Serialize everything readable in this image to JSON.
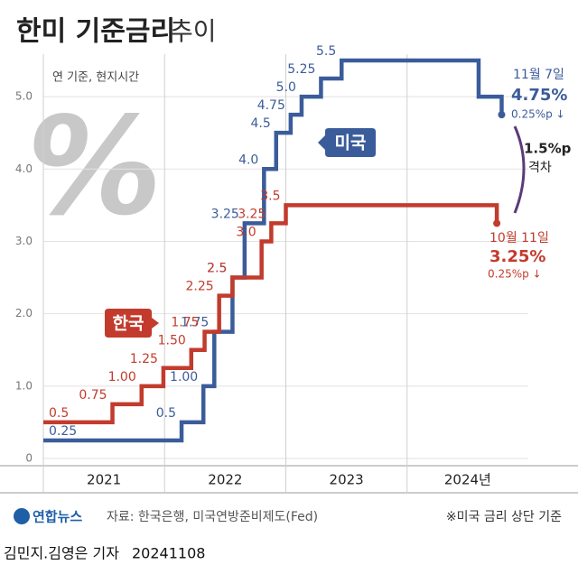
{
  "chart_data": {
    "type": "step",
    "title": "한미 기준금리",
    "title_suffix": "추이",
    "note": "연 기준, 현지시간",
    "decor_text": "%",
    "xlim": [
      2021,
      2025
    ],
    "xticks": [
      {
        "value": 2021,
        "label": "2021"
      },
      {
        "value": 2022,
        "label": "2022"
      },
      {
        "value": 2023,
        "label": "2023"
      },
      {
        "value": 2024,
        "label": "2024년"
      }
    ],
    "ylim": [
      0,
      5.5
    ],
    "yticks": [
      0,
      {
        "value": 1,
        "label": "1.0"
      },
      {
        "value": 2,
        "label": "2.0"
      },
      {
        "value": 3,
        "label": "3.0"
      },
      {
        "value": 4,
        "label": "4.0"
      },
      {
        "value": 5,
        "label": "5.0"
      }
    ],
    "grid": true,
    "series": [
      {
        "name": "미국",
        "color": "#3b5c9a",
        "x": [
          2021,
          2022.14,
          2022.32,
          2022.41,
          2022.56,
          2022.66,
          2022.82,
          2022.92,
          2023.04,
          2023.13,
          2023.29,
          2023.46,
          2024.59,
          2024.78
        ],
        "values": [
          0.25,
          0.5,
          1,
          1.75,
          2.5,
          3.25,
          4,
          4.5,
          4.75,
          5,
          5.25,
          5.5,
          5,
          4.75
        ],
        "value_labels": [
          "0.25",
          "0.5",
          "1.00",
          "1.75",
          "2.5",
          "3.25",
          "4.0",
          "4.5",
          "4.75",
          "5.0",
          "5.25",
          "5.5",
          null,
          null
        ]
      },
      {
        "name": "한국",
        "color": "#c23b2c",
        "x": [
          2021,
          2021.57,
          2021.81,
          2021.99,
          2022.22,
          2022.33,
          2022.45,
          2022.56,
          2022.8,
          2022.88,
          2023.0,
          2024.74
        ],
        "values": [
          0.5,
          0.75,
          1,
          1.25,
          1.5,
          1.75,
          2.25,
          2.5,
          3,
          3.25,
          3.5,
          3.25
        ],
        "value_labels": [
          "0.5",
          "0.75",
          "1.00",
          "1.25",
          "1.50",
          "1.75",
          "2.25",
          "2.5",
          "3.0",
          "3.25",
          "3.5",
          null
        ]
      }
    ],
    "annotations": {
      "us_date": "11월 7일",
      "us_rate": "4.75%",
      "us_change": "0.25%p ↓",
      "gap": "1.5%p",
      "gap_label": "격차",
      "kr_date": "10월 11일",
      "kr_rate": "3.25%",
      "kr_change": "0.25%p ↓"
    }
  },
  "footer": {
    "agency": "연합뉴스",
    "source": "자료: 한국은행, 미국연방준비제도(Fed)",
    "basis": "※미국 금리 상단 기준",
    "byline": "김민지.김영은 기자",
    "date": "20241108"
  }
}
